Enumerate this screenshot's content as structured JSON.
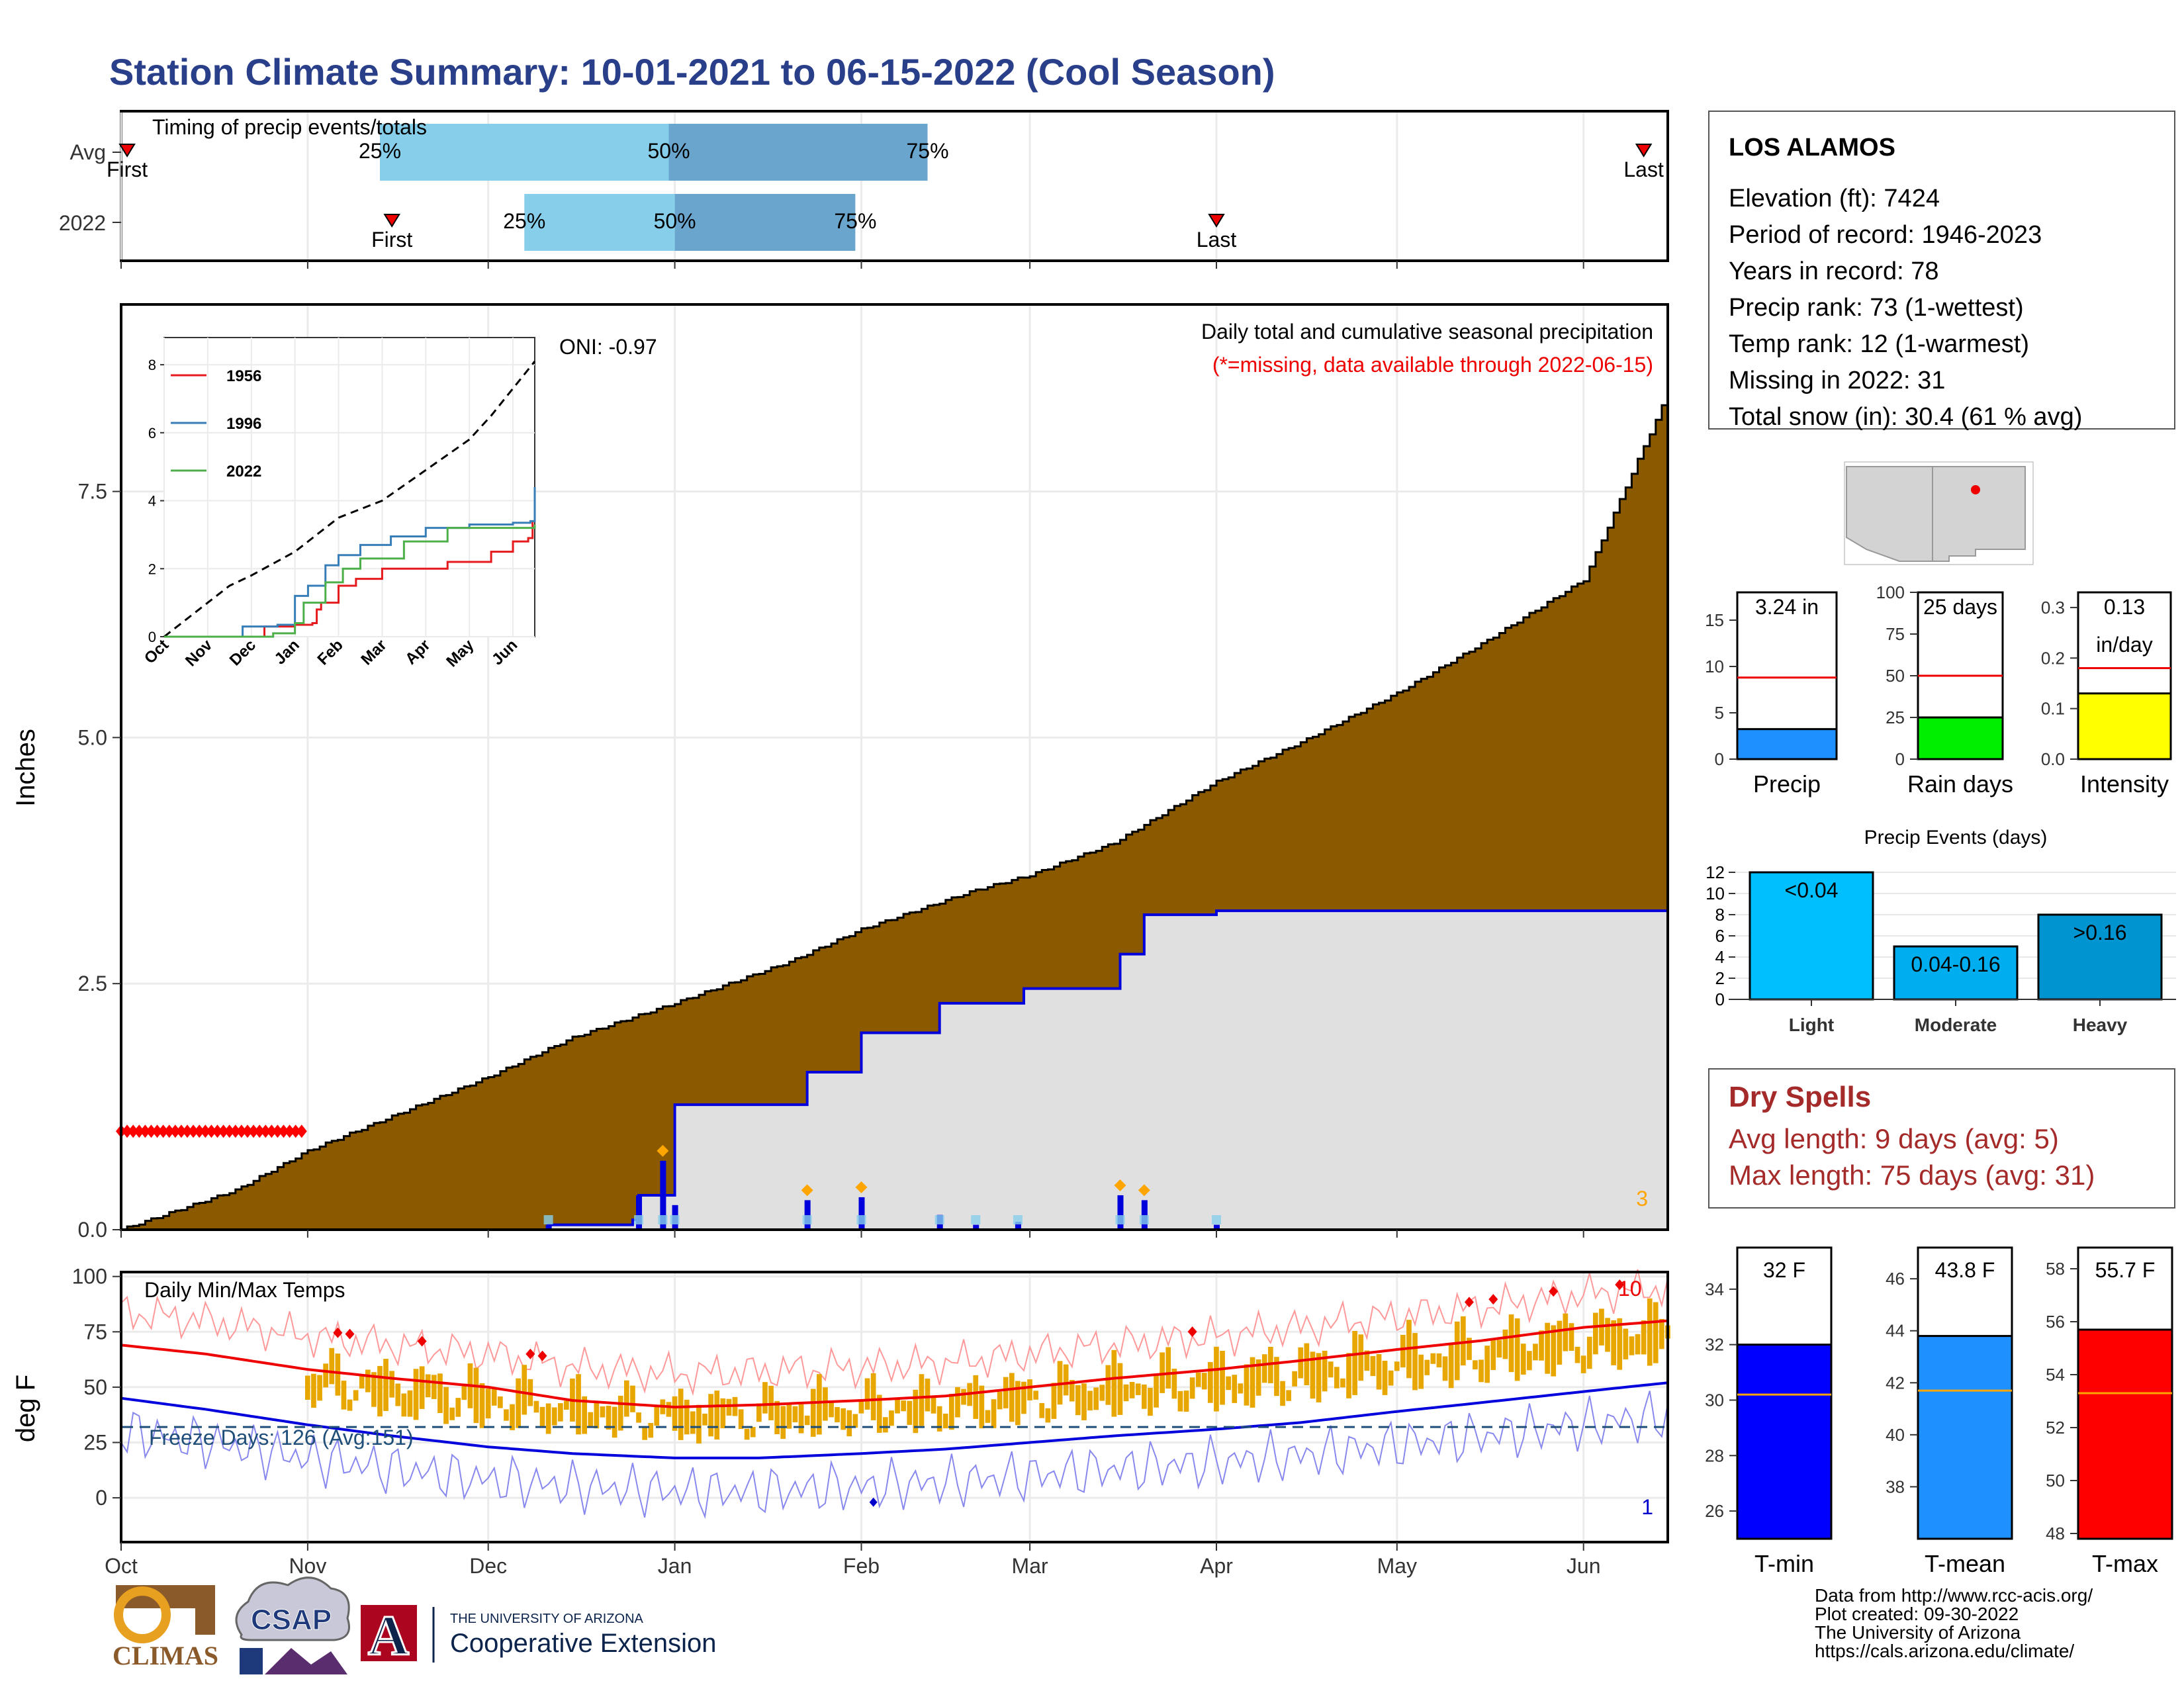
{
  "title": "Station Climate Summary: 10-01-2021 to 06-15-2022 (Cool Season)",
  "months": [
    "Oct",
    "Nov",
    "Dec",
    "Jan",
    "Feb",
    "Mar",
    "Apr",
    "May",
    "Jun"
  ],
  "timing": {
    "label": "Timing of precip events/totals",
    "rows": [
      "Avg",
      "2022"
    ],
    "pct_labels": [
      "25%",
      "50%",
      "75%"
    ],
    "first_label": "First",
    "last_label": "Last",
    "avg": {
      "first": "2021-10-02",
      "q25": "2021-11-13",
      "q50": "2021-12-31",
      "q75": "2022-02-12",
      "last": "2022-06-11"
    },
    "y2022": {
      "first": "2021-11-15",
      "q25": "2021-12-07",
      "q50": "2022-01-01",
      "q75": "2022-01-31",
      "last": "2022-04-01"
    },
    "colors": {
      "light": "#87ceeb",
      "dark": "#6aa5cd",
      "marker": "#ee0000"
    }
  },
  "precip": {
    "ylabel": "Inches",
    "y_ticks": [
      "0.0",
      "2.5",
      "5.0",
      "7.5"
    ],
    "ylim": [
      0,
      9.4
    ],
    "note": "Daily total and cumulative seasonal precipitation",
    "missing_note": "(*=missing, data available through 2022-06-15)",
    "oni": "ONI: -0.97",
    "corner_count": "3",
    "avg_cumulative": [
      [
        "2021-10-01",
        0
      ],
      [
        "2021-10-20",
        0.4
      ],
      [
        "2021-11-01",
        0.8
      ],
      [
        "2021-11-15",
        1.15
      ],
      [
        "2021-12-01",
        1.55
      ],
      [
        "2021-12-15",
        1.95
      ],
      [
        "2022-01-01",
        2.3
      ],
      [
        "2022-01-20",
        2.72
      ],
      [
        "2022-02-01",
        3.05
      ],
      [
        "2022-02-20",
        3.45
      ],
      [
        "2022-03-01",
        3.6
      ],
      [
        "2022-03-15",
        3.93
      ],
      [
        "2022-04-01",
        4.55
      ],
      [
        "2022-04-15",
        4.95
      ],
      [
        "2022-05-01",
        5.45
      ],
      [
        "2022-05-15",
        5.95
      ],
      [
        "2022-06-01",
        6.6
      ],
      [
        "2022-06-15",
        8.5
      ]
    ],
    "obs_cumulative": [
      [
        "2021-10-01",
        0
      ],
      [
        "2021-12-10",
        0
      ],
      [
        "2021-12-11",
        0.05
      ],
      [
        "2021-12-25",
        0.1
      ],
      [
        "2021-12-26",
        0.35
      ],
      [
        "2022-01-01",
        1.27
      ],
      [
        "2022-01-22",
        1.27
      ],
      [
        "2022-01-23",
        1.6
      ],
      [
        "2022-01-31",
        1.6
      ],
      [
        "2022-02-01",
        2.0
      ],
      [
        "2022-02-13",
        2.0
      ],
      [
        "2022-02-14",
        2.3
      ],
      [
        "2022-02-27",
        2.3
      ],
      [
        "2022-02-28",
        2.45
      ],
      [
        "2022-03-15",
        2.45
      ],
      [
        "2022-03-16",
        2.8
      ],
      [
        "2022-03-19",
        2.8
      ],
      [
        "2022-03-20",
        3.2
      ],
      [
        "2022-04-01",
        3.24
      ],
      [
        "2022-06-15",
        3.24
      ]
    ],
    "daily_bars": [
      [
        "2021-12-11",
        0.05
      ],
      [
        "2021-12-26",
        0.35
      ],
      [
        "2021-12-30",
        0.7
      ],
      [
        "2022-01-01",
        0.25
      ],
      [
        "2022-01-23",
        0.3
      ],
      [
        "2022-02-01",
        0.33
      ],
      [
        "2022-02-14",
        0.15
      ],
      [
        "2022-02-20",
        0.05
      ],
      [
        "2022-02-27",
        0.08
      ],
      [
        "2022-03-16",
        0.35
      ],
      [
        "2022-03-20",
        0.3
      ],
      [
        "2022-04-01",
        0.05
      ]
    ],
    "missing_range": [
      "2021-10-01",
      "2021-10-31"
    ],
    "colors": {
      "avg_fill": "#8b5a00",
      "obs_fill": "#e0e0e0",
      "obs_line": "#0000dd",
      "missing": "#ff0000"
    }
  },
  "inset": {
    "y_ticks": [
      "0",
      "2",
      "4",
      "6",
      "8"
    ],
    "series": [
      {
        "name": "1956",
        "color": "#e41a1c",
        "values": [
          [
            0,
            0
          ],
          [
            2,
            0
          ],
          [
            2.3,
            0.3
          ],
          [
            3,
            0.35
          ],
          [
            3.4,
            0.4
          ],
          [
            3.5,
            0.8
          ],
          [
            3.6,
            1.0
          ],
          [
            4,
            1.5
          ],
          [
            4.4,
            1.7
          ],
          [
            5,
            2.0
          ],
          [
            6.5,
            2.2
          ],
          [
            7.5,
            2.5
          ],
          [
            8,
            2.8
          ],
          [
            8.35,
            2.9
          ],
          [
            8.45,
            3.4
          ]
        ]
      },
      {
        "name": "1996",
        "color": "#377eb8",
        "values": [
          [
            0,
            0
          ],
          [
            1.7,
            0
          ],
          [
            1.8,
            0.3
          ],
          [
            2.6,
            0.35
          ],
          [
            3.0,
            1.2
          ],
          [
            3.3,
            1.5
          ],
          [
            3.7,
            2.1
          ],
          [
            4.0,
            2.4
          ],
          [
            4.5,
            2.7
          ],
          [
            5.2,
            2.95
          ],
          [
            6,
            3.2
          ],
          [
            7,
            3.3
          ],
          [
            8,
            3.35
          ],
          [
            8.4,
            3.4
          ],
          [
            8.5,
            4.4
          ]
        ]
      },
      {
        "name": "2022",
        "color": "#4daf4a",
        "values": [
          [
            0,
            0
          ],
          [
            2.3,
            0
          ],
          [
            2.5,
            0.1
          ],
          [
            3,
            0.4
          ],
          [
            3.2,
            1.0
          ],
          [
            3.7,
            1.6
          ],
          [
            4.1,
            2.0
          ],
          [
            4.5,
            2.3
          ],
          [
            5.5,
            2.8
          ],
          [
            6.5,
            3.2
          ],
          [
            8.5,
            3.3
          ]
        ]
      }
    ],
    "avg_line": [
      [
        0,
        0
      ],
      [
        0.5,
        0.5
      ],
      [
        1,
        1.0
      ],
      [
        1.5,
        1.5
      ],
      [
        2,
        1.8
      ],
      [
        3,
        2.5
      ],
      [
        4,
        3.5
      ],
      [
        5,
        4.0
      ],
      [
        6,
        4.9
      ],
      [
        7,
        5.8
      ],
      [
        7.5,
        6.5
      ],
      [
        8,
        7.3
      ],
      [
        8.5,
        8.1
      ]
    ],
    "avg_dash_color": "#000000"
  },
  "temps": {
    "label": "Daily Min/Max Temps",
    "ylabel": "deg F",
    "y_ticks": [
      "0",
      "25",
      "50",
      "75",
      "100"
    ],
    "ylim": [
      -20,
      102
    ],
    "freeze_label": "Freeze Days: 126 (Avg:151)",
    "freeze_line": 32,
    "count_high": "10",
    "count_low": "1",
    "avg_max": [
      [
        "2021-10-01",
        69
      ],
      [
        "2021-10-15",
        65
      ],
      [
        "2021-11-01",
        58
      ],
      [
        "2021-11-15",
        54
      ],
      [
        "2021-12-01",
        50
      ],
      [
        "2021-12-15",
        44
      ],
      [
        "2022-01-01",
        41
      ],
      [
        "2022-01-15",
        42
      ],
      [
        "2022-02-01",
        44
      ],
      [
        "2022-02-15",
        46
      ],
      [
        "2022-03-01",
        50
      ],
      [
        "2022-03-15",
        54
      ],
      [
        "2022-04-01",
        58
      ],
      [
        "2022-04-15",
        62
      ],
      [
        "2022-05-01",
        67
      ],
      [
        "2022-05-15",
        71
      ],
      [
        "2022-06-01",
        77
      ],
      [
        "2022-06-15",
        80
      ]
    ],
    "avg_min": [
      [
        "2021-10-01",
        45
      ],
      [
        "2021-10-15",
        40
      ],
      [
        "2021-11-01",
        33
      ],
      [
        "2021-11-15",
        28
      ],
      [
        "2021-12-01",
        23
      ],
      [
        "2021-12-15",
        20
      ],
      [
        "2022-01-01",
        18
      ],
      [
        "2022-01-15",
        18
      ],
      [
        "2022-02-01",
        20
      ],
      [
        "2022-02-15",
        22
      ],
      [
        "2022-03-01",
        25
      ],
      [
        "2022-03-15",
        28
      ],
      [
        "2022-04-01",
        31
      ],
      [
        "2022-04-15",
        34
      ],
      [
        "2022-05-01",
        39
      ],
      [
        "2022-05-15",
        43
      ],
      [
        "2022-06-01",
        48
      ],
      [
        "2022-06-15",
        52
      ]
    ],
    "colors": {
      "bars": "#e8a700",
      "max_line": "#ee0000",
      "min_line": "#0000dd",
      "freeze": "#1f4e79",
      "record_high": "#ff9999",
      "record_low": "#8888ee"
    }
  },
  "station": {
    "name": "LOS ALAMOS",
    "lines": [
      "Elevation (ft): 7424",
      "Period of record: 1946-2023",
      "Years in record: 78",
      "Precip rank: 73 (1-wettest)",
      "Temp rank: 12 (1-warmest)",
      "Missing in 2022: 31",
      "Total snow (in): 30.4 (61 % avg)"
    ]
  },
  "mini_bars": [
    {
      "label": "Precip",
      "value_text": "3.24 in",
      "value": 3.24,
      "avg": 8.8,
      "max": 18,
      "ticks": [
        "0",
        "5",
        "10",
        "15"
      ],
      "tick_vals": [
        0,
        5,
        10,
        15
      ],
      "color": "#1e90ff"
    },
    {
      "label": "Rain days",
      "value_text": "25 days",
      "value": 25,
      "avg": 50,
      "max": 100,
      "ticks": [
        "0",
        "25",
        "50",
        "75",
        "100"
      ],
      "tick_vals": [
        0,
        25,
        50,
        75,
        100
      ],
      "color": "#00ee00"
    },
    {
      "label": "Intensity",
      "value_text": "0.13",
      "value_text2": "in/day",
      "value": 0.13,
      "avg": 0.18,
      "max": 0.33,
      "ticks": [
        "0.0",
        "0.1",
        "0.2",
        "0.3"
      ],
      "tick_vals": [
        0,
        0.1,
        0.2,
        0.3
      ],
      "color": "#ffff00"
    }
  ],
  "events": {
    "title": "Precip Events (days)",
    "categories": [
      "Light",
      "Moderate",
      "Heavy"
    ],
    "values": [
      12,
      5,
      8
    ],
    "labels": [
      "<0.04",
      "0.04-0.16",
      ">0.16"
    ],
    "ticks": [
      "0",
      "2",
      "4",
      "6",
      "8",
      "10",
      "12"
    ],
    "colors": [
      "#00bfff",
      "#00aeef",
      "#0095d0"
    ]
  },
  "dry_spells": {
    "title": "Dry Spells",
    "avg": "Avg length: 9 days (avg: 5)",
    "max": "Max length: 75 days (avg: 31)",
    "color": "#a52a2a"
  },
  "temp_bars": [
    {
      "label": "T-min",
      "value_text": "32 F",
      "value": 32,
      "avg": 30.2,
      "min": 25,
      "max": 35.5,
      "ticks": [
        "26",
        "28",
        "30",
        "32",
        "34"
      ],
      "tick_vals": [
        26,
        28,
        30,
        32,
        34
      ],
      "color": "#0000ff"
    },
    {
      "label": "T-mean",
      "value_text": "43.8 F",
      "value": 43.8,
      "avg": 41.7,
      "min": 36,
      "max": 47.2,
      "ticks": [
        "38",
        "40",
        "42",
        "44",
        "46"
      ],
      "tick_vals": [
        38,
        40,
        42,
        44,
        46
      ],
      "color": "#1e90ff"
    },
    {
      "label": "T-max",
      "value_text": "55.7 F",
      "value": 55.7,
      "avg": 53.3,
      "min": 47.8,
      "max": 58.8,
      "ticks": [
        "48",
        "50",
        "52",
        "54",
        "56",
        "58"
      ],
      "tick_vals": [
        48,
        50,
        52,
        54,
        56,
        58
      ],
      "color": "#ff0000"
    }
  ],
  "credits": [
    "Data from http://www.rcc-acis.org/",
    "Plot created: 09-30-2022",
    "The University of Arizona",
    "https://cals.arizona.edu/climate/"
  ],
  "logos": {
    "climas": "CLIMAS",
    "csap": "CSAP",
    "ua_small": "THE UNIVERSITY OF ARIZONA",
    "ua_big": "Cooperative Extension",
    "ua_letter": "A"
  }
}
